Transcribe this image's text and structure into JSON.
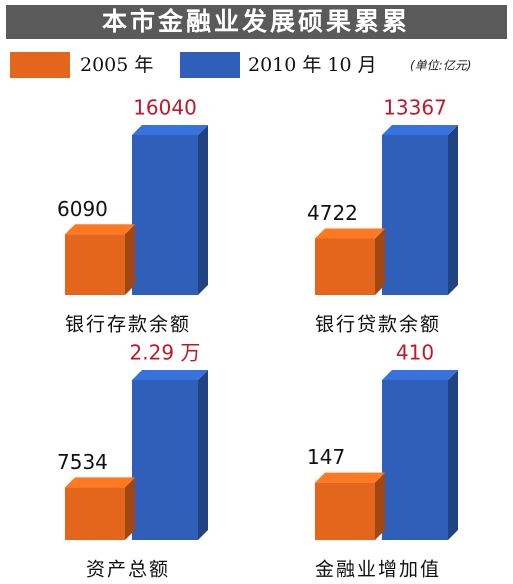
{
  "title": "本市金融业发展硕果累累",
  "legend": {
    "series": [
      {
        "name": "2005 年",
        "color": "#e4651c"
      },
      {
        "name": "2010 年 10 月",
        "color": "#2f5fb9"
      }
    ]
  },
  "unit": "(单位:亿元)",
  "chart_data": [
    {
      "type": "bar",
      "label": "银行存款余额",
      "values": [
        6090,
        16040
      ]
    },
    {
      "type": "bar",
      "label": "银行贷款余额",
      "values": [
        4722,
        13367
      ]
    },
    {
      "type": "bar",
      "label": "资产总额",
      "values": [
        7534,
        22900
      ],
      "value_labels": [
        "7534",
        "2.29 万"
      ]
    },
    {
      "type": "bar",
      "label": "金融业增加值",
      "values": [
        147,
        410
      ]
    }
  ]
}
